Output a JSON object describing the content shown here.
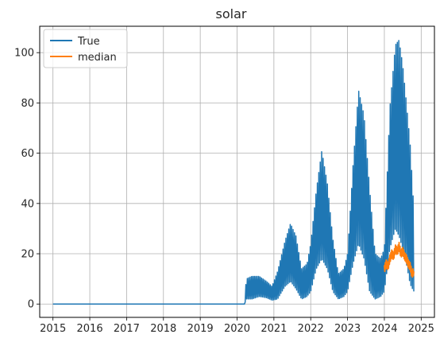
{
  "chart_data": {
    "type": "line",
    "title": "solar",
    "xlabel": "",
    "ylabel": "",
    "xlim": [
      2014.64,
      2025.36
    ],
    "ylim": [
      -5.3,
      110.5
    ],
    "xticks": [
      2015,
      2016,
      2017,
      2018,
      2019,
      2020,
      2021,
      2022,
      2023,
      2024,
      2025
    ],
    "xtick_labels": [
      "2015",
      "2016",
      "2017",
      "2018",
      "2019",
      "2020",
      "2021",
      "2022",
      "2023",
      "2024",
      "2025"
    ],
    "yticks": [
      0,
      20,
      40,
      60,
      80,
      100
    ],
    "ytick_labels": [
      "0",
      "20",
      "40",
      "60",
      "80",
      "100"
    ],
    "grid": true,
    "legend_position": "top-left",
    "series": [
      {
        "name": "True",
        "color": "#1f77b4",
        "kind": "band",
        "x": [
          2015.0,
          2020.2,
          2020.25,
          2020.4,
          2020.6,
          2020.8,
          2020.95,
          2021.1,
          2021.3,
          2021.45,
          2021.6,
          2021.75,
          2021.9,
          2022.0,
          2022.15,
          2022.3,
          2022.45,
          2022.6,
          2022.75,
          2022.9,
          2023.0,
          2023.15,
          2023.3,
          2023.45,
          2023.6,
          2023.75,
          2023.9,
          2024.0,
          2024.15,
          2024.3,
          2024.4,
          2024.5,
          2024.6,
          2024.7,
          2024.8
        ],
        "low": [
          0,
          0,
          2,
          2,
          3,
          2.5,
          1.5,
          2,
          7,
          9,
          6,
          2,
          3,
          5,
          14,
          18,
          14,
          5,
          2,
          3,
          5,
          16,
          24,
          18,
          5,
          2,
          3,
          5,
          22,
          30,
          27,
          22,
          16,
          8,
          5
        ],
        "high": [
          0,
          0,
          10,
          11,
          11,
          9,
          7,
          13,
          25,
          32,
          27,
          14,
          16,
          24,
          45,
          61,
          48,
          26,
          12,
          14,
          20,
          55,
          85,
          75,
          46,
          20,
          18,
          22,
          78,
          103,
          105,
          95,
          80,
          64,
          38
        ]
      },
      {
        "name": "median",
        "color": "#ff7f0e",
        "kind": "line",
        "x": [
          2024.0,
          2024.05,
          2024.1,
          2024.15,
          2024.2,
          2024.25,
          2024.3,
          2024.35,
          2024.4,
          2024.45,
          2024.5,
          2024.55,
          2024.6,
          2024.65,
          2024.7,
          2024.75,
          2024.8
        ],
        "values": [
          14,
          16,
          15,
          18,
          20,
          19,
          22,
          21,
          23,
          20,
          21,
          19,
          18,
          16,
          15,
          12,
          13
        ]
      }
    ]
  }
}
